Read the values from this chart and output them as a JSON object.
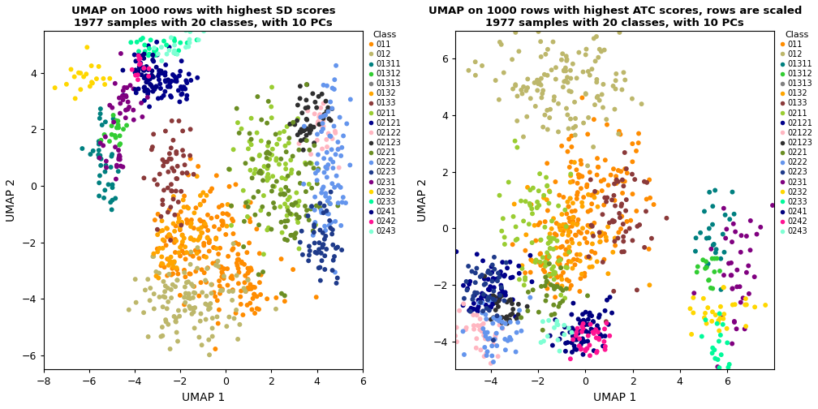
{
  "plot1_title": "UMAP on 1000 rows with highest SD scores\n1977 samples with 20 classes, with 10 PCs",
  "plot2_title": "UMAP on 1000 rows with highest ATC scores, rows are scaled\n1977 samples with 20 classes, with 10 PCs",
  "xlabel": "UMAP 1",
  "ylabel": "UMAP 2",
  "classes": [
    "011",
    "012",
    "01311",
    "01312",
    "01313",
    "0132",
    "0133",
    "0211",
    "02121",
    "02122",
    "02123",
    "0221",
    "0222",
    "0223",
    "0231",
    "0232",
    "0233",
    "0241",
    "0242",
    "0243"
  ],
  "colors": [
    "#F8766D",
    "#CD9600",
    "#7CAE00",
    "#00BE67",
    "#00BFC4",
    "#00A9FF",
    "#C77CFF",
    "#FF61CC",
    "#F8766D",
    "#CD9600",
    "#7CAE00",
    "#00BE67",
    "#00BFC4",
    "#00A9FF",
    "#C77CFF",
    "#FF61CC",
    "#F8766D",
    "#CD9600",
    "#7CAE00",
    "#00BFC4"
  ],
  "colors20": [
    "#F8766D",
    "#E58700",
    "#C99800",
    "#A3A500",
    "#6BB100",
    "#00BA38",
    "#00BF7D",
    "#00C0AF",
    "#00BCD8",
    "#00B0F6",
    "#619CFF",
    "#B983FF",
    "#E76BF3",
    "#FD61D1",
    "#FF67A4",
    "#FF6C90",
    "#FF6375",
    "#F8766D",
    "#E58700",
    "#00C0AF"
  ],
  "r_colors": [
    "#F8766D",
    "#DE8C00",
    "#B79F00",
    "#7CAE00",
    "#00BA38",
    "#00C08B",
    "#00BFC4",
    "#00B4F0",
    "#619CFF",
    "#C77CFF",
    "#F564E3",
    "#FF64B0",
    "#FF6C90",
    "#FF6A71",
    "#FF7B00",
    "#E7B800",
    "#C3D100",
    "#79CE3C",
    "#00BE5A",
    "#00C094"
  ],
  "plot1_xlim": [
    -8,
    6
  ],
  "plot1_ylim": [
    -6.5,
    5.5
  ],
  "plot2_xlim": [
    -5.5,
    8
  ],
  "plot2_ylim": [
    -5,
    7
  ],
  "plot1_xticks": [
    -8,
    -6,
    -4,
    -2,
    0,
    2,
    4,
    6
  ],
  "plot1_yticks": [
    -6,
    -4,
    -2,
    0,
    2,
    4
  ],
  "plot2_xticks": [
    -4,
    -2,
    0,
    2,
    4,
    6
  ],
  "plot2_yticks": [
    -4,
    -2,
    0,
    2,
    4,
    6
  ],
  "point_size": 18,
  "alpha": 1.0
}
